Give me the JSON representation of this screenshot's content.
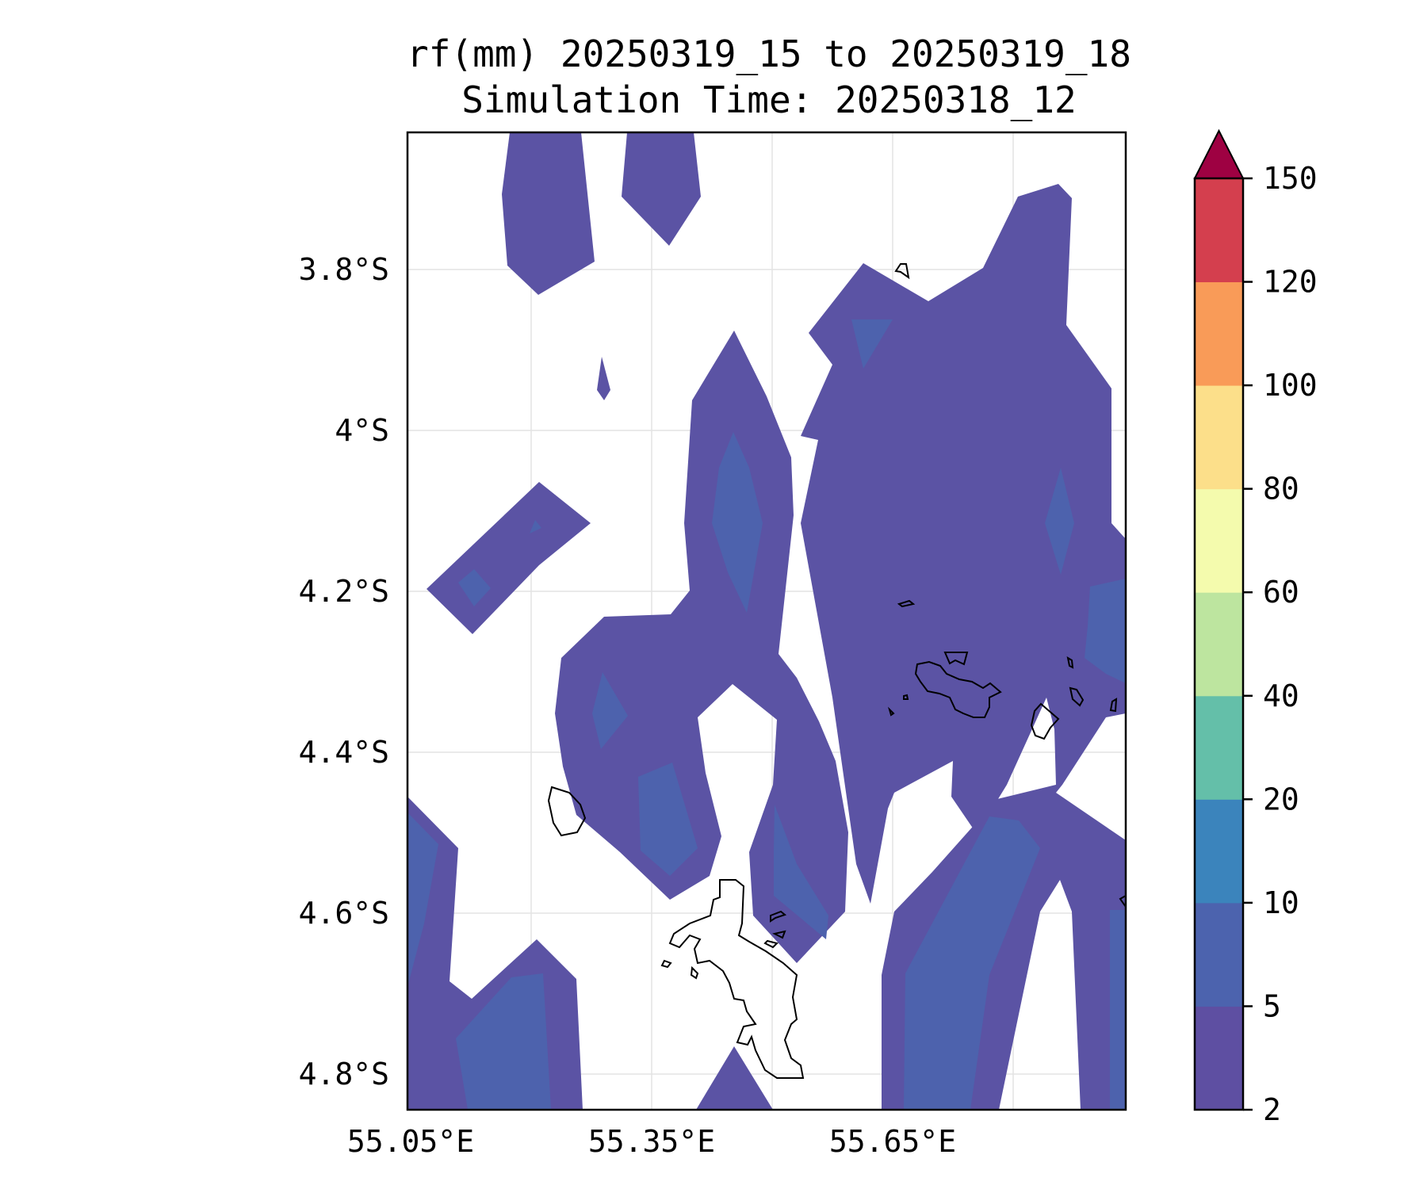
{
  "title": {
    "line1": "rf(mm) 20250319_15 to 20250319_18",
    "line2": "Simulation Time: 20250318_12"
  },
  "map": {
    "lon_ticks": [
      "55.05°E",
      "55.35°E",
      "55.65°E"
    ],
    "lat_ticks": [
      "3.8°S",
      "4°S",
      "4.2°S",
      "4.4°S",
      "4.6°S",
      "4.8°S"
    ],
    "lon_range": [
      55.05,
      55.95
    ],
    "lat_range": [
      -4.84,
      -3.63
    ],
    "gridlines": true
  },
  "colorbar": {
    "label_values": [
      "2",
      "5",
      "10",
      "20",
      "40",
      "60",
      "80",
      "100",
      "120",
      "150"
    ],
    "colors": [
      "#5e4fa2",
      "#4c63ae",
      "#3b84bc",
      "#64bfa9",
      "#bde59f",
      "#f4fbad",
      "#fcdf8a",
      "#f99b58",
      "#d43f4e",
      "#9e0142"
    ],
    "extend": "max"
  },
  "fill_levels": {
    "level_2_5": "#5b53a4",
    "level_5_10": "#4d62ad"
  }
}
